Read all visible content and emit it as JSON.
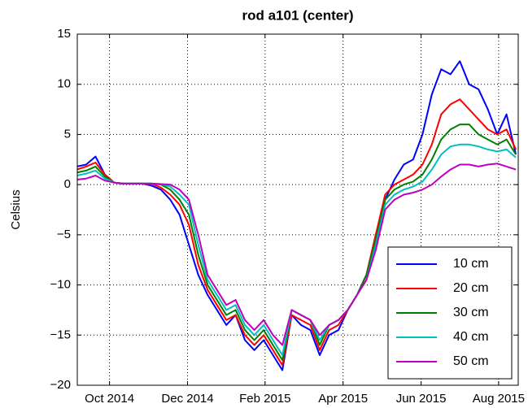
{
  "chart_data": {
    "type": "line",
    "title": "rod a101 (center)",
    "y_label": "Celsius",
    "x": [
      2014.68,
      2014.7,
      2014.72,
      2014.74,
      2014.76,
      2014.78,
      2014.8,
      2014.82,
      2014.84,
      2014.86,
      2014.88,
      2014.9,
      2014.92,
      2014.94,
      2014.96,
      2014.98,
      2015.0,
      2015.02,
      2015.04,
      2015.06,
      2015.08,
      2015.1,
      2015.12,
      2015.14,
      2015.16,
      2015.18,
      2015.2,
      2015.22,
      2015.24,
      2015.26,
      2015.28,
      2015.3,
      2015.32,
      2015.34,
      2015.36,
      2015.38,
      2015.4,
      2015.42,
      2015.44,
      2015.46,
      2015.48,
      2015.5,
      2015.52,
      2015.54,
      2015.56,
      2015.58,
      2015.6,
      2015.62
    ],
    "xlim": [
      2014.681,
      2015.625
    ],
    "xticks": [
      {
        "value": 2014.75,
        "label": "Oct 2014"
      },
      {
        "value": 2014.917,
        "label": "Dec 2014"
      },
      {
        "value": 2015.083,
        "label": "Feb 2015"
      },
      {
        "value": 2015.25,
        "label": "Apr 2015"
      },
      {
        "value": 2015.417,
        "label": "Jun 2015"
      },
      {
        "value": 2015.583,
        "label": "Aug 2015"
      }
    ],
    "ylim": [
      -20,
      15
    ],
    "yticks": [
      {
        "value": -20,
        "label": "−20"
      },
      {
        "value": -15,
        "label": "−15"
      },
      {
        "value": -10,
        "label": "−10"
      },
      {
        "value": -5,
        "label": "−5"
      },
      0,
      5,
      10,
      15
    ],
    "grid": true,
    "legend": "lower right",
    "series": [
      {
        "name": "10 cm",
        "color": "#0000ff",
        "values": [
          1.8,
          2.0,
          2.8,
          1.0,
          0.2,
          0.1,
          0.1,
          0.1,
          -0.1,
          -0.5,
          -1.5,
          -3,
          -6,
          -9,
          -11,
          -12.5,
          -14,
          -13,
          -15.5,
          -16.5,
          -15.5,
          -17,
          -18.5,
          -13,
          -14,
          -14.5,
          -17,
          -15,
          -14.5,
          -12.5,
          -11,
          -9,
          -5,
          -1.5,
          0.5,
          2,
          2.5,
          5,
          9,
          11.5,
          11,
          12.3,
          10,
          9.5,
          7.5,
          5,
          7,
          3
        ]
      },
      {
        "name": "20 cm",
        "color": "#ff0000",
        "values": [
          1.5,
          1.8,
          2.2,
          1.0,
          0.2,
          0.1,
          0.1,
          0.1,
          0.1,
          -0.3,
          -1,
          -2,
          -4,
          -8,
          -10.5,
          -12,
          -13.5,
          -13,
          -15,
          -16,
          -15,
          -16.5,
          -18,
          -13,
          -13.5,
          -14,
          -16.5,
          -14.5,
          -14,
          -12.5,
          -11,
          -9,
          -5,
          -1,
          0,
          0.5,
          1,
          2,
          4,
          7,
          8,
          8.5,
          7.5,
          6.5,
          5.5,
          5,
          5.5,
          3.5
        ]
      },
      {
        "name": "30 cm",
        "color": "#008000",
        "values": [
          1.2,
          1.4,
          1.8,
          0.8,
          0.2,
          0.1,
          0.1,
          0.1,
          0.1,
          0,
          -0.5,
          -1.5,
          -3,
          -7,
          -10,
          -11.5,
          -13,
          -12.5,
          -14.5,
          -15.5,
          -14.5,
          -16,
          -17.5,
          -12.5,
          -13,
          -13.5,
          -16,
          -14,
          -13.5,
          -12.5,
          -11,
          -9,
          -5.5,
          -1.5,
          -0.5,
          0,
          0.3,
          1,
          2.5,
          4.5,
          5.5,
          6,
          6,
          5,
          4.5,
          4,
          4.5,
          3
        ]
      },
      {
        "name": "40 cm",
        "color": "#00bfbf",
        "values": [
          0.9,
          1.1,
          1.4,
          0.6,
          0.2,
          0.1,
          0.1,
          0.1,
          0.1,
          0.05,
          -0.2,
          -1,
          -2,
          -6,
          -9.5,
          -11,
          -12.5,
          -12,
          -14,
          -15,
          -14,
          -15.5,
          -17,
          -12.5,
          -13,
          -13.5,
          -15.5,
          -14,
          -13.5,
          -12.5,
          -11,
          -9.5,
          -6,
          -2,
          -1,
          -0.5,
          -0.2,
          0.3,
          1.5,
          3,
          3.8,
          4,
          4,
          3.8,
          3.5,
          3.3,
          3.5,
          2.7
        ]
      },
      {
        "name": "50 cm",
        "color": "#bf00bf",
        "values": [
          0.5,
          0.6,
          0.9,
          0.4,
          0.2,
          0.1,
          0.1,
          0.1,
          0.1,
          0.05,
          0,
          -0.5,
          -1.5,
          -5,
          -9,
          -10.5,
          -12,
          -11.5,
          -13.5,
          -14.5,
          -13.5,
          -15,
          -16,
          -12.5,
          -13,
          -13.5,
          -15,
          -14,
          -13.5,
          -12.5,
          -11,
          -9.5,
          -6.5,
          -2.5,
          -1.5,
          -1,
          -0.8,
          -0.5,
          0,
          0.8,
          1.5,
          2,
          2,
          1.8,
          2,
          2.1,
          1.8,
          1.5
        ]
      }
    ]
  }
}
